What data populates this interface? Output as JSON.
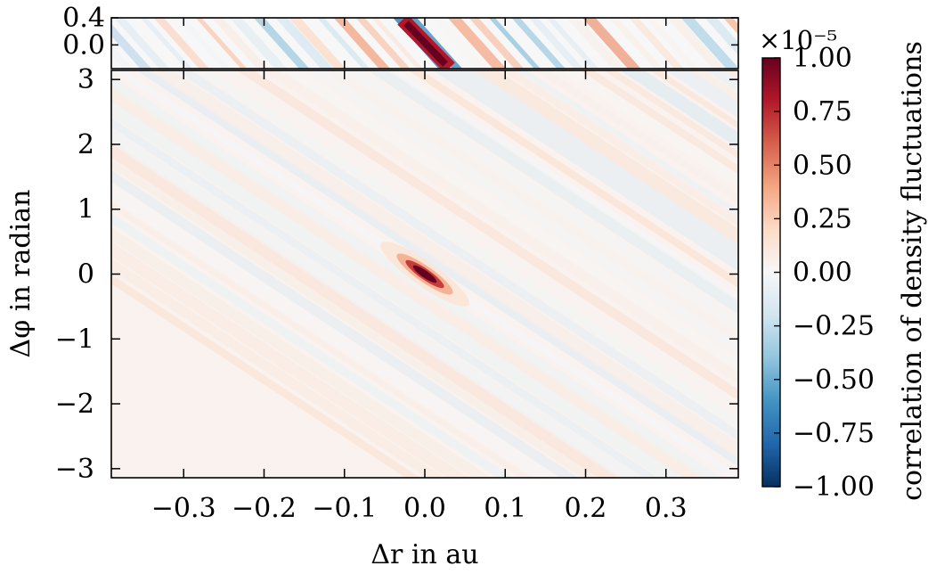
{
  "chart_data": {
    "type": "heatmap",
    "xlabel": "Δr in au",
    "ylabel": "Δφ in radian",
    "x_ticks": [
      "−0.3",
      "−0.2",
      "−0.1",
      "0.0",
      "0.1",
      "0.2",
      "0.3"
    ],
    "x_tick_values": [
      -0.3,
      -0.2,
      -0.1,
      0.0,
      0.1,
      0.2,
      0.3
    ],
    "xlim": [
      -0.39,
      0.39
    ],
    "main_panel": {
      "ylim": [
        -3.14,
        3.14
      ],
      "y_ticks": [
        "3",
        "2",
        "1",
        "0",
        "−1",
        "−2",
        "−3"
      ],
      "y_tick_values": [
        3,
        2,
        1,
        0,
        -1,
        -2,
        -3
      ],
      "peak": {
        "x": 0.0,
        "y": 0.0,
        "value": 1.0
      }
    },
    "zoom_panel": {
      "ylim": [
        -0.35,
        0.4
      ],
      "y_ticks": [
        "0.4",
        "0.0"
      ],
      "y_tick_values": [
        0.4,
        0.0
      ]
    },
    "colorbar": {
      "label": "correlation of density fluctuations",
      "scale_label": "×10⁻⁵",
      "range": [
        -1.0,
        1.0
      ],
      "ticks": [
        "1.00",
        "0.75",
        "0.50",
        "0.25",
        "0.00",
        "−0.25",
        "−0.50",
        "−0.75",
        "−1.00"
      ],
      "tick_values": [
        1.0,
        0.75,
        0.5,
        0.25,
        0.0,
        -0.25,
        -0.5,
        -0.75,
        -1.0
      ],
      "colormap": "RdBu_r",
      "colors": [
        "#053061",
        "#2166ac",
        "#4393c3",
        "#92c5de",
        "#d1e5f0",
        "#f7f7f7",
        "#fddbc7",
        "#f4a582",
        "#d6604d",
        "#b2182b",
        "#67001f"
      ]
    }
  }
}
